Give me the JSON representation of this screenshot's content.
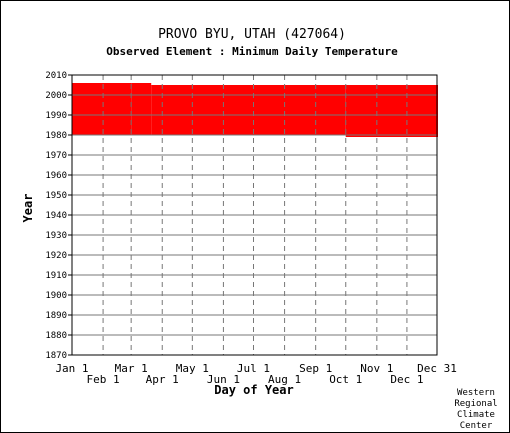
{
  "chart_data": {
    "type": "bar",
    "title": "PROVO BYU, UTAH   (427064)",
    "subtitle": "Observed Element : Minimum Daily Temperature",
    "xlabel": "Day of Year",
    "ylabel": "Year",
    "xlim": [
      1,
      365
    ],
    "ylim": [
      1870,
      2010
    ],
    "y_ticks": [
      1870,
      1880,
      1890,
      1900,
      1910,
      1920,
      1930,
      1940,
      1950,
      1960,
      1970,
      1980,
      1990,
      2000,
      2010
    ],
    "x_ticks_top_row": [
      {
        "label": "Jan 1",
        "day": 1
      },
      {
        "label": "Mar 1",
        "day": 60
      },
      {
        "label": "May 1",
        "day": 121
      },
      {
        "label": "Jul 1",
        "day": 182
      },
      {
        "label": "Sep 1",
        "day": 244
      },
      {
        "label": "Nov 1",
        "day": 305
      },
      {
        "label": "Dec 31",
        "day": 365
      }
    ],
    "x_ticks_bottom_row": [
      {
        "label": "Feb 1",
        "day": 32
      },
      {
        "label": "Apr 1",
        "day": 91
      },
      {
        "label": "Jun 1",
        "day": 152
      },
      {
        "label": "Aug 1",
        "day": 213
      },
      {
        "label": "Oct 1",
        "day": 274
      },
      {
        "label": "Dec 1",
        "day": 335
      }
    ],
    "coverage": [
      {
        "day_start": 1,
        "day_end": 59,
        "year_start": 1980,
        "year_end": 2006
      },
      {
        "day_start": 60,
        "day_end": 79,
        "year_start": 1980,
        "year_end": 2006
      },
      {
        "day_start": 80,
        "day_end": 273,
        "year_start": 1980,
        "year_end": 2005
      },
      {
        "day_start": 274,
        "day_end": 365,
        "year_start": 1979,
        "year_end": 2005
      }
    ],
    "fill_color": "#ff0000",
    "grid": true
  },
  "credit": [
    "Western",
    "Regional",
    "Climate",
    "Center"
  ]
}
